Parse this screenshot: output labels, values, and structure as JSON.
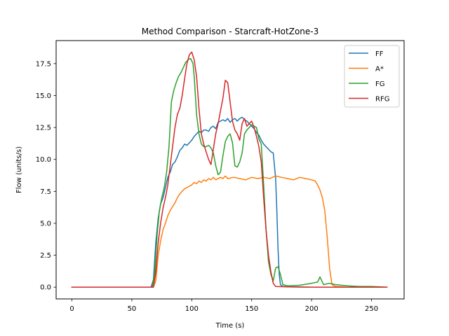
{
  "chart_data": {
    "type": "line",
    "title": "Method Comparison - Starcraft-HotZone-3",
    "xlabel": "Time (s)",
    "ylabel": "Flow (units/s)",
    "xlim": [
      -13.2,
      277.2
    ],
    "ylim": [
      -0.92,
      19.3
    ],
    "xticks": [
      0,
      50,
      100,
      150,
      200,
      250
    ],
    "xtick_labels": [
      "0",
      "50",
      "100",
      "150",
      "200",
      "250"
    ],
    "yticks": [
      0.0,
      2.5,
      5.0,
      7.5,
      10.0,
      12.5,
      15.0,
      17.5
    ],
    "ytick_labels": [
      "0.0",
      "2.5",
      "5.0",
      "7.5",
      "10.0",
      "12.5",
      "15.0",
      "17.5"
    ],
    "grid": false,
    "legend_position": "top-right",
    "series": [
      {
        "name": "FF",
        "color": "#1f77b4",
        "x": [
          0,
          66,
          68,
          70,
          72,
          74,
          76,
          78,
          80,
          82,
          84,
          86,
          88,
          90,
          92,
          94,
          96,
          98,
          100,
          102,
          104,
          106,
          108,
          110,
          112,
          114,
          116,
          118,
          120,
          122,
          124,
          126,
          128,
          130,
          132,
          134,
          136,
          138,
          140,
          142,
          144,
          146,
          148,
          150,
          152,
          154,
          156,
          158,
          160,
          162,
          164,
          166,
          168,
          170,
          171,
          172,
          173,
          174,
          176,
          180,
          200,
          230,
          263
        ],
        "y": [
          0,
          0,
          0.6,
          3.5,
          5.4,
          6.5,
          7.0,
          7.8,
          8.6,
          9.0,
          9.6,
          9.8,
          10.2,
          10.7,
          10.9,
          11.2,
          11.1,
          11.3,
          11.5,
          11.8,
          12.0,
          12.2,
          12.1,
          12.3,
          12.3,
          12.2,
          12.5,
          12.6,
          12.4,
          12.9,
          13.0,
          13.1,
          13.0,
          13.2,
          12.9,
          13.1,
          13.2,
          13.0,
          13.2,
          13.3,
          13.1,
          13.0,
          12.8,
          12.6,
          12.4,
          12.1,
          11.9,
          11.5,
          11.2,
          11.0,
          10.8,
          10.6,
          10.5,
          8.5,
          6.0,
          3.0,
          1.0,
          0.2,
          0.05,
          0.02,
          0.0,
          0.0,
          0.0
        ]
      },
      {
        "name": "A*",
        "color": "#ff7f0e",
        "x": [
          0,
          68,
          70,
          72,
          74,
          76,
          78,
          80,
          82,
          84,
          86,
          88,
          90,
          92,
          94,
          96,
          98,
          100,
          102,
          104,
          106,
          108,
          110,
          112,
          114,
          116,
          118,
          120,
          122,
          124,
          126,
          128,
          130,
          135,
          140,
          145,
          150,
          155,
          160,
          165,
          170,
          175,
          180,
          185,
          190,
          195,
          200,
          203,
          205,
          207,
          209,
          211,
          213,
          215,
          217,
          220,
          230,
          240,
          250,
          263
        ],
        "y": [
          0,
          0,
          0.5,
          2.5,
          3.6,
          4.5,
          5.0,
          5.6,
          6.0,
          6.3,
          6.6,
          7.0,
          7.3,
          7.5,
          7.7,
          7.8,
          7.9,
          8.0,
          8.2,
          8.1,
          8.3,
          8.2,
          8.4,
          8.3,
          8.5,
          8.4,
          8.6,
          8.4,
          8.5,
          8.6,
          8.5,
          8.7,
          8.5,
          8.6,
          8.5,
          8.4,
          8.6,
          8.5,
          8.6,
          8.5,
          8.7,
          8.6,
          8.5,
          8.4,
          8.6,
          8.5,
          8.4,
          8.3,
          8.0,
          7.6,
          7.0,
          6.0,
          4.0,
          1.5,
          0.2,
          0.05,
          0.0,
          0.05,
          0.0,
          0.0
        ]
      },
      {
        "name": "FG",
        "color": "#2ca02c",
        "x": [
          0,
          67,
          69,
          71,
          73,
          75,
          77,
          79,
          81,
          83,
          85,
          87,
          89,
          91,
          93,
          95,
          97,
          99,
          101,
          102,
          103,
          104,
          106,
          108,
          110,
          112,
          114,
          116,
          118,
          120,
          122,
          124,
          126,
          128,
          130,
          132,
          134,
          136,
          138,
          140,
          142,
          144,
          146,
          148,
          150,
          152,
          154,
          156,
          158,
          160,
          162,
          164,
          166,
          168,
          170,
          172,
          174,
          176,
          180,
          190,
          200,
          205,
          207,
          210,
          215,
          220,
          230,
          240,
          250,
          263
        ],
        "y": [
          0,
          0,
          1.0,
          4.0,
          6.0,
          7.0,
          7.8,
          9.0,
          11.0,
          14.5,
          15.4,
          16.0,
          16.5,
          16.8,
          17.2,
          17.6,
          17.8,
          17.9,
          17.5,
          16.5,
          15.0,
          13.5,
          12.0,
          11.2,
          11.0,
          11.0,
          11.1,
          10.9,
          10.5,
          9.5,
          8.8,
          9.0,
          10.3,
          11.4,
          11.8,
          12.0,
          11.3,
          9.5,
          9.4,
          9.8,
          10.5,
          12.0,
          12.3,
          12.5,
          12.7,
          12.6,
          12.5,
          11.6,
          11.2,
          8.0,
          4.5,
          2.0,
          1.0,
          0.5,
          1.5,
          1.6,
          1.0,
          0.2,
          0.1,
          0.15,
          0.3,
          0.4,
          0.8,
          0.2,
          0.3,
          0.2,
          0.1,
          0.05,
          0.05,
          0.0
        ]
      },
      {
        "name": "RFG",
        "color": "#d62728",
        "x": [
          0,
          68,
          70,
          72,
          74,
          76,
          78,
          80,
          82,
          84,
          86,
          88,
          90,
          92,
          94,
          96,
          98,
          100,
          102,
          104,
          106,
          108,
          110,
          112,
          114,
          116,
          118,
          120,
          122,
          124,
          126,
          128,
          130,
          132,
          134,
          136,
          138,
          140,
          142,
          144,
          146,
          148,
          150,
          152,
          154,
          156,
          158,
          160,
          162,
          164,
          166,
          168,
          170,
          180,
          200,
          230,
          263
        ],
        "y": [
          0,
          0,
          1.2,
          3.5,
          5.0,
          6.2,
          7.0,
          8.0,
          9.5,
          11.0,
          12.5,
          13.5,
          14.0,
          15.0,
          16.3,
          17.5,
          18.2,
          18.4,
          17.8,
          16.5,
          14.0,
          12.0,
          11.2,
          10.6,
          10.0,
          9.6,
          10.8,
          12.0,
          12.8,
          13.8,
          14.8,
          16.2,
          16.0,
          14.5,
          13.0,
          12.3,
          12.0,
          11.5,
          12.8,
          13.2,
          12.6,
          12.8,
          13.0,
          12.5,
          11.8,
          11.0,
          9.8,
          7.0,
          4.5,
          2.5,
          1.2,
          0.3,
          0.05,
          0.02,
          0.0,
          0.0,
          0.0
        ]
      }
    ]
  }
}
